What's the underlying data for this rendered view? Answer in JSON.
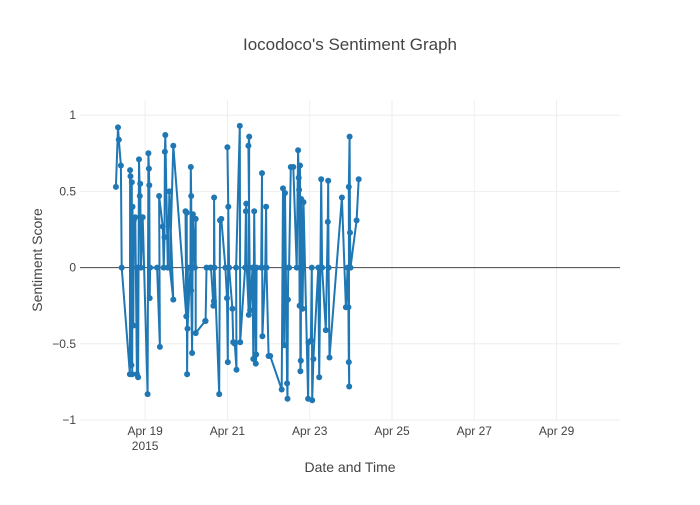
{
  "chart_data": {
    "type": "line",
    "title": "Iocodoco's Sentiment Graph",
    "xlabel": "Date and Time",
    "ylabel": "Sentiment Score",
    "x_axis": {
      "type": "date",
      "range": [
        "2015-04-17T10:00",
        "2015-04-30T13:00"
      ],
      "ticks": [
        {
          "value": "2015-04-19T00:00",
          "label": "Apr 19",
          "sublabel": "2015"
        },
        {
          "value": "2015-04-21T00:00",
          "label": "Apr 21"
        },
        {
          "value": "2015-04-23T00:00",
          "label": "Apr 23"
        },
        {
          "value": "2015-04-25T00:00",
          "label": "Apr 25"
        },
        {
          "value": "2015-04-27T00:00",
          "label": "Apr 27"
        },
        {
          "value": "2015-04-29T00:00",
          "label": "Apr 29"
        }
      ]
    },
    "y_axis": {
      "range": [
        -1.0,
        1.1
      ],
      "ticks": [
        {
          "value": -1,
          "label": "−1"
        },
        {
          "value": -0.5,
          "label": "−0.5"
        },
        {
          "value": 0,
          "label": "0"
        },
        {
          "value": 0.5,
          "label": "0.5"
        },
        {
          "value": 1,
          "label": "1"
        }
      ]
    },
    "grid": true,
    "colors": {
      "series": "#1f77b4",
      "grid": "#eeeeee",
      "zeroline": "#444444",
      "text": "#444444"
    },
    "series": [
      {
        "points": [
          [
            "2015-04-18T06:58",
            0.53
          ],
          [
            "2015-04-18T08:10",
            0.92
          ],
          [
            "2015-04-18T08:38",
            0.84
          ],
          [
            "2015-04-18T09:50",
            0.67
          ],
          [
            "2015-04-18T10:19",
            0.0
          ],
          [
            "2015-04-18T15:07",
            -0.7
          ],
          [
            "2015-04-18T15:14",
            0.64
          ],
          [
            "2015-04-18T15:29",
            0.6
          ],
          [
            "2015-04-18T15:58",
            -0.64
          ],
          [
            "2015-04-18T16:12",
            0.56
          ],
          [
            "2015-04-18T16:26",
            -0.7
          ],
          [
            "2015-04-18T16:38",
            0.4
          ],
          [
            "2015-04-18T17:07",
            -0.38
          ],
          [
            "2015-04-18T17:22",
            0.31
          ],
          [
            "2015-04-18T18:14",
            0.33
          ],
          [
            "2015-04-18T19:12",
            -0.7
          ],
          [
            "2015-04-18T19:26",
            0.0
          ],
          [
            "2015-04-18T19:55",
            -0.72
          ],
          [
            "2015-04-18T20:24",
            0.71
          ],
          [
            "2015-04-18T20:52",
            0.47
          ],
          [
            "2015-04-18T21:07",
            0.55
          ],
          [
            "2015-04-18T21:36",
            0.0
          ],
          [
            "2015-04-18T22:34",
            0.33
          ],
          [
            "2015-04-19T01:25",
            -0.83
          ],
          [
            "2015-04-19T01:55",
            0.75
          ],
          [
            "2015-04-19T02:12",
            0.65
          ],
          [
            "2015-04-19T02:24",
            0.54
          ],
          [
            "2015-04-19T02:38",
            -0.2
          ],
          [
            "2015-04-19T02:53",
            0.0
          ],
          [
            "2015-04-19T06:58",
            0.0
          ],
          [
            "2015-04-19T08:38",
            -0.52
          ],
          [
            "2015-04-19T08:10",
            0.47
          ],
          [
            "2015-04-19T10:19",
            0.27
          ],
          [
            "2015-04-19T10:48",
            0.0
          ],
          [
            "2015-04-19T11:17",
            0.2
          ],
          [
            "2015-04-19T11:31",
            0.76
          ],
          [
            "2015-04-19T11:46",
            0.87
          ],
          [
            "2015-04-19T13:12",
            0.0
          ],
          [
            "2015-04-19T14:10",
            0.5
          ],
          [
            "2015-04-19T16:26",
            -0.21
          ],
          [
            "2015-04-19T14:24",
            0.0
          ],
          [
            "2015-04-19T16:26",
            0.8
          ],
          [
            "2015-04-20T00:00",
            -0.32
          ],
          [
            "2015-04-19T23:31",
            0.37
          ],
          [
            "2015-04-20T00:14",
            0.36
          ],
          [
            "2015-04-20T00:29",
            -0.7
          ],
          [
            "2015-04-20T00:58",
            0.0
          ],
          [
            "2015-04-20T00:43",
            -0.4
          ],
          [
            "2015-04-20T02:24",
            0.0
          ],
          [
            "2015-04-20T02:38",
            0.66
          ],
          [
            "2015-04-20T02:53",
            0.47
          ],
          [
            "2015-04-20T03:07",
            0.0
          ],
          [
            "2015-04-20T02:53",
            -0.15
          ],
          [
            "2015-04-20T03:22",
            -0.56
          ],
          [
            "2015-04-20T03:50",
            0.35
          ],
          [
            "2015-04-20T05:02",
            0.0
          ],
          [
            "2015-04-20T05:31",
            0.32
          ],
          [
            "2015-04-20T05:31",
            -0.43
          ],
          [
            "2015-04-20T11:02",
            -0.35
          ],
          [
            "2015-04-20T11:17",
            -0.35
          ],
          [
            "2015-04-20T11:46",
            0.0
          ],
          [
            "2015-04-20T13:55",
            0.0
          ],
          [
            "2015-04-20T14:24",
            0.0
          ],
          [
            "2015-04-20T15:50",
            -0.25
          ],
          [
            "2015-04-20T16:05",
            -0.22
          ],
          [
            "2015-04-20T16:12",
            0.46
          ],
          [
            "2015-04-20T16:26",
            0.0
          ],
          [
            "2015-04-20T19:12",
            -0.83
          ],
          [
            "2015-04-20T19:41",
            0.31
          ],
          [
            "2015-04-20T20:24",
            0.32
          ],
          [
            "2015-04-20T22:48",
            0.0
          ],
          [
            "2015-04-20T23:46",
            -0.2
          ],
          [
            "2015-04-21T00:14",
            -0.62
          ],
          [
            "2015-04-21T00:29",
            0.4
          ],
          [
            "2015-04-21T00:00",
            0.79
          ],
          [
            "2015-04-21T00:58",
            0.0
          ],
          [
            "2015-04-21T02:53",
            -0.27
          ],
          [
            "2015-04-21T03:22",
            -0.49
          ],
          [
            "2015-04-21T04:19",
            -0.5
          ],
          [
            "2015-04-21T05:16",
            -0.67
          ],
          [
            "2015-04-21T05:02",
            0.0
          ],
          [
            "2015-04-21T07:12",
            0.93
          ],
          [
            "2015-04-21T07:26",
            -0.49
          ],
          [
            "2015-04-21T10:19",
            0.0
          ],
          [
            "2015-04-21T10:48",
            0.37
          ],
          [
            "2015-04-21T11:02",
            0.42
          ],
          [
            "2015-04-21T11:17",
            0.0
          ],
          [
            "2015-04-21T12:29",
            -0.31
          ],
          [
            "2015-04-21T12:43",
            0.86
          ],
          [
            "2015-04-21T12:14",
            0.8
          ],
          [
            "2015-04-21T13:12",
            -0.28
          ],
          [
            "2015-04-21T14:38",
            0.0
          ],
          [
            "2015-04-21T15:07",
            -0.6
          ],
          [
            "2015-04-21T15:36",
            0.37
          ],
          [
            "2015-04-21T16:34",
            -0.63
          ],
          [
            "2015-04-21T16:48",
            -0.57
          ],
          [
            "2015-04-21T17:02",
            0.0
          ],
          [
            "2015-04-21T19:41",
            0.0
          ],
          [
            "2015-04-21T20:10",
            0.62
          ],
          [
            "2015-04-21T20:24",
            -0.45
          ],
          [
            "2015-04-21T22:05",
            0.0
          ],
          [
            "2015-04-21T22:34",
            0.4
          ],
          [
            "2015-04-21T22:48",
            0.0
          ],
          [
            "2015-04-22T00:00",
            -0.58
          ],
          [
            "2015-04-22T00:58",
            -0.58
          ],
          [
            "2015-04-22T07:41",
            -0.8
          ],
          [
            "2015-04-22T08:24",
            0.52
          ],
          [
            "2015-04-22T09:07",
            -0.51
          ],
          [
            "2015-04-22T09:36",
            0.49
          ],
          [
            "2015-04-22T10:48",
            -0.76
          ],
          [
            "2015-04-22T11:02",
            -0.86
          ],
          [
            "2015-04-22T11:17",
            -0.21
          ],
          [
            "2015-04-22T11:31",
            0.0
          ],
          [
            "2015-04-22T12:00",
            0.0
          ],
          [
            "2015-04-22T12:58",
            0.66
          ],
          [
            "2015-04-22T14:24",
            0.66
          ],
          [
            "2015-04-22T16:26",
            0.0
          ],
          [
            "2015-04-22T17:14",
            0.77
          ],
          [
            "2015-04-22T17:36",
            0.59
          ],
          [
            "2015-04-22T17:50",
            0.51
          ],
          [
            "2015-04-22T18:05",
            -0.25
          ],
          [
            "2015-04-22T18:19",
            0.67
          ],
          [
            "2015-04-22T18:34",
            -0.68
          ],
          [
            "2015-04-22T18:48",
            -0.61
          ],
          [
            "2015-04-22T19:02",
            0.45
          ],
          [
            "2015-04-22T19:17",
            0.32
          ],
          [
            "2015-04-22T19:31",
            0.0
          ],
          [
            "2015-04-22T19:46",
            -0.27
          ],
          [
            "2015-04-22T20:10",
            0.0
          ],
          [
            "2015-04-22T20:24",
            0.43
          ],
          [
            "2015-04-22T23:02",
            -0.86
          ],
          [
            "2015-04-22T23:17",
            -0.49
          ],
          [
            "2015-04-23T00:43",
            -0.48
          ],
          [
            "2015-04-23T01:12",
            0.0
          ],
          [
            "2015-04-23T01:26",
            -0.87
          ],
          [
            "2015-04-23T02:10",
            -0.6
          ],
          [
            "2015-04-23T05:02",
            0.0
          ],
          [
            "2015-04-23T05:31",
            -0.72
          ],
          [
            "2015-04-23T06:14",
            0.0
          ],
          [
            "2015-04-23T06:43",
            0.58
          ],
          [
            "2015-04-23T07:12",
            0.0
          ],
          [
            "2015-04-23T09:22",
            -0.41
          ],
          [
            "2015-04-23T10:34",
            0.3
          ],
          [
            "2015-04-23T10:48",
            0.57
          ],
          [
            "2015-04-23T11:02",
            0.0
          ],
          [
            "2015-04-23T11:31",
            -0.59
          ],
          [
            "2015-04-23T18:48",
            0.46
          ],
          [
            "2015-04-23T21:07",
            -0.26
          ],
          [
            "2015-04-23T22:05",
            0.0
          ],
          [
            "2015-04-23T22:34",
            -0.26
          ],
          [
            "2015-04-23T22:48",
            -0.62
          ],
          [
            "2015-04-23T23:02",
            -0.78
          ],
          [
            "2015-04-23T22:48",
            0.53
          ],
          [
            "2015-04-23T23:17",
            0.86
          ],
          [
            "2015-04-23T23:31",
            0.23
          ],
          [
            "2015-04-23T23:46",
            0.0
          ],
          [
            "2015-04-24T03:22",
            0.31
          ],
          [
            "2015-04-24T04:34",
            0.58
          ]
        ]
      }
    ]
  }
}
